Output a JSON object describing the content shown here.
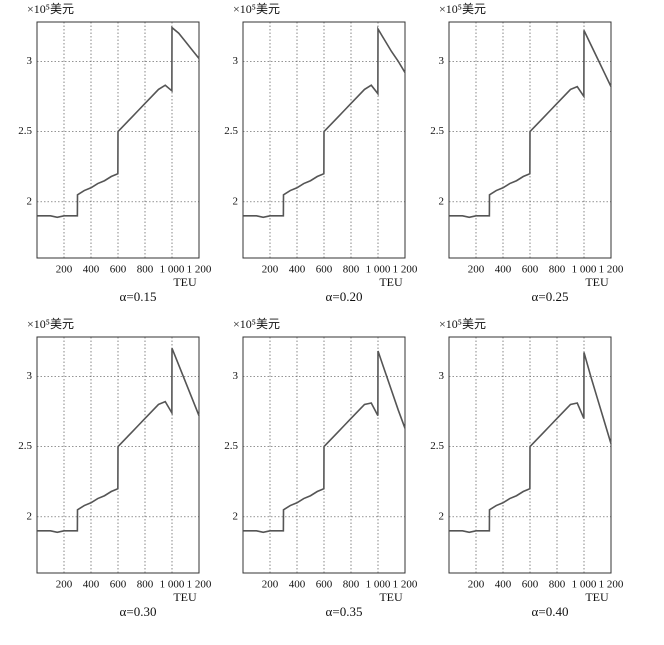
{
  "chart_data": [
    {
      "type": "line",
      "title": "α=0.15",
      "y_label": "×10⁵美元",
      "x_label": "TEU",
      "color": "#555555",
      "grid": true,
      "x": [
        1,
        50,
        100,
        150,
        200,
        250,
        299,
        300,
        350,
        400,
        450,
        500,
        550,
        599,
        600,
        650,
        700,
        750,
        800,
        850,
        900,
        950,
        999,
        1000,
        1050,
        1100,
        1150,
        1200
      ],
      "values": [
        1.9,
        1.9,
        1.9,
        1.89,
        1.9,
        1.9,
        1.9,
        2.05,
        2.08,
        2.1,
        2.13,
        2.15,
        2.18,
        2.2,
        2.5,
        2.55,
        2.6,
        2.65,
        2.7,
        2.75,
        2.8,
        2.83,
        2.79,
        3.24,
        3.2,
        3.14,
        3.08,
        3.02
      ],
      "xlim": [
        0,
        1200
      ],
      "xticks": [
        200,
        400,
        600,
        800,
        {
          "value": 1000,
          "label": "1 000"
        },
        {
          "value": 1200,
          "label": "1 200"
        }
      ],
      "ylim": [
        1.6,
        3.28
      ],
      "yticks": [
        2,
        2.5,
        3
      ]
    },
    {
      "type": "line",
      "title": "α=0.20",
      "y_label": "×10⁵美元",
      "x_label": "TEU",
      "color": "#555555",
      "grid": true,
      "x": [
        1,
        50,
        100,
        150,
        200,
        250,
        299,
        300,
        350,
        400,
        450,
        500,
        550,
        599,
        600,
        650,
        700,
        750,
        800,
        850,
        900,
        950,
        999,
        1000,
        1050,
        1100,
        1150,
        1200
      ],
      "values": [
        1.9,
        1.9,
        1.9,
        1.89,
        1.9,
        1.9,
        1.9,
        2.05,
        2.08,
        2.1,
        2.13,
        2.15,
        2.18,
        2.2,
        2.5,
        2.55,
        2.6,
        2.65,
        2.7,
        2.75,
        2.8,
        2.83,
        2.77,
        3.23,
        3.15,
        3.07,
        3.0,
        2.92
      ],
      "xlim": [
        0,
        1200
      ],
      "xticks": [
        200,
        400,
        600,
        800,
        {
          "value": 1000,
          "label": "1 000"
        },
        {
          "value": 1200,
          "label": "1 200"
        }
      ],
      "ylim": [
        1.6,
        3.28
      ],
      "yticks": [
        2,
        2.5,
        3
      ]
    },
    {
      "type": "line",
      "title": "α=0.25",
      "y_label": "×10⁵美元",
      "x_label": "TEU",
      "color": "#555555",
      "grid": true,
      "x": [
        1,
        50,
        100,
        150,
        200,
        250,
        299,
        300,
        350,
        400,
        450,
        500,
        550,
        599,
        600,
        650,
        700,
        750,
        800,
        850,
        900,
        950,
        999,
        1000,
        1050,
        1100,
        1150,
        1200
      ],
      "values": [
        1.9,
        1.9,
        1.9,
        1.89,
        1.9,
        1.9,
        1.9,
        2.05,
        2.08,
        2.1,
        2.13,
        2.15,
        2.18,
        2.2,
        2.5,
        2.55,
        2.6,
        2.65,
        2.7,
        2.75,
        2.8,
        2.82,
        2.75,
        3.22,
        3.12,
        3.02,
        2.92,
        2.82
      ],
      "xlim": [
        0,
        1200
      ],
      "xticks": [
        200,
        400,
        600,
        800,
        {
          "value": 1000,
          "label": "1 000"
        },
        {
          "value": 1200,
          "label": "1 200"
        }
      ],
      "ylim": [
        1.6,
        3.28
      ],
      "yticks": [
        2,
        2.5,
        3
      ]
    },
    {
      "type": "line",
      "title": "α=0.30",
      "y_label": "×10⁵美元",
      "x_label": "TEU",
      "color": "#555555",
      "grid": true,
      "x": [
        1,
        50,
        100,
        150,
        200,
        250,
        299,
        300,
        350,
        400,
        450,
        500,
        550,
        599,
        600,
        650,
        700,
        750,
        800,
        850,
        900,
        950,
        999,
        1000,
        1050,
        1100,
        1150,
        1200
      ],
      "values": [
        1.9,
        1.9,
        1.9,
        1.89,
        1.9,
        1.9,
        1.9,
        2.05,
        2.08,
        2.1,
        2.13,
        2.15,
        2.18,
        2.2,
        2.5,
        2.55,
        2.6,
        2.65,
        2.7,
        2.75,
        2.8,
        2.82,
        2.74,
        3.2,
        3.08,
        2.96,
        2.84,
        2.72
      ],
      "xlim": [
        0,
        1200
      ],
      "xticks": [
        200,
        400,
        600,
        800,
        {
          "value": 1000,
          "label": "1 000"
        },
        {
          "value": 1200,
          "label": "1 200"
        }
      ],
      "ylim": [
        1.6,
        3.28
      ],
      "yticks": [
        2,
        2.5,
        3
      ]
    },
    {
      "type": "line",
      "title": "α=0.35",
      "y_label": "×10⁵美元",
      "x_label": "TEU",
      "color": "#555555",
      "grid": true,
      "x": [
        1,
        50,
        100,
        150,
        200,
        250,
        299,
        300,
        350,
        400,
        450,
        500,
        550,
        599,
        600,
        650,
        700,
        750,
        800,
        850,
        900,
        950,
        999,
        1000,
        1050,
        1100,
        1150,
        1200
      ],
      "values": [
        1.9,
        1.9,
        1.9,
        1.89,
        1.9,
        1.9,
        1.9,
        2.05,
        2.08,
        2.1,
        2.13,
        2.15,
        2.18,
        2.2,
        2.5,
        2.55,
        2.6,
        2.65,
        2.7,
        2.75,
        2.8,
        2.81,
        2.72,
        3.18,
        3.04,
        2.9,
        2.76,
        2.63
      ],
      "xlim": [
        0,
        1200
      ],
      "xticks": [
        200,
        400,
        600,
        800,
        {
          "value": 1000,
          "label": "1 000"
        },
        {
          "value": 1200,
          "label": "1 200"
        }
      ],
      "ylim": [
        1.6,
        3.28
      ],
      "yticks": [
        2,
        2.5,
        3
      ]
    },
    {
      "type": "line",
      "title": "α=0.40",
      "y_label": "×10⁵美元",
      "x_label": "TEU",
      "color": "#555555",
      "grid": true,
      "x": [
        1,
        50,
        100,
        150,
        200,
        250,
        299,
        300,
        350,
        400,
        450,
        500,
        550,
        599,
        600,
        650,
        700,
        750,
        800,
        850,
        900,
        950,
        999,
        1000,
        1050,
        1100,
        1150,
        1200
      ],
      "values": [
        1.9,
        1.9,
        1.9,
        1.89,
        1.9,
        1.9,
        1.9,
        2.05,
        2.08,
        2.1,
        2.13,
        2.15,
        2.18,
        2.2,
        2.5,
        2.55,
        2.6,
        2.65,
        2.7,
        2.75,
        2.8,
        2.81,
        2.7,
        3.17,
        3.0,
        2.84,
        2.68,
        2.52
      ],
      "xlim": [
        0,
        1200
      ],
      "xticks": [
        200,
        400,
        600,
        800,
        {
          "value": 1000,
          "label": "1 000"
        },
        {
          "value": 1200,
          "label": "1 200"
        }
      ],
      "ylim": [
        1.6,
        3.28
      ],
      "yticks": [
        2,
        2.5,
        3
      ]
    }
  ]
}
